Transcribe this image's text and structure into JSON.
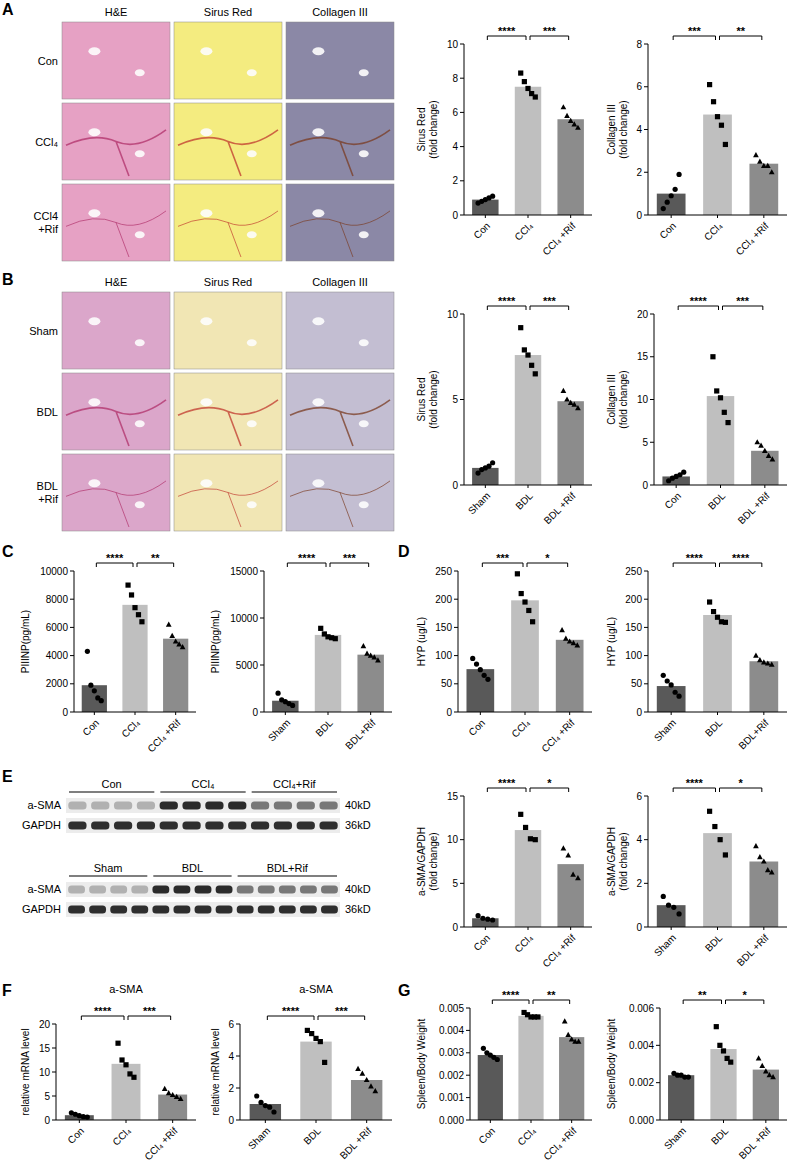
{
  "chart_data": [
    {
      "type": "bar",
      "ylabel": [
        "Sirus Red",
        "(fold change)"
      ],
      "categories": [
        "Con",
        "CCl₄",
        "CCl₄ +Rif"
      ],
      "values": [
        0.9,
        7.5,
        5.6
      ],
      "colors": [
        "#595959",
        "#bfbfbf",
        "#8c8c8c"
      ],
      "scatter": [
        {
          "marker": "circle",
          "values": [
            0.7,
            0.8,
            0.9,
            1.0,
            1.1
          ]
        },
        {
          "marker": "square",
          "values": [
            8.3,
            7.8,
            7.4,
            7.1,
            6.9
          ]
        },
        {
          "marker": "triangle",
          "values": [
            6.3,
            5.8,
            5.5,
            5.3,
            5.1
          ]
        }
      ],
      "ylim": [
        0,
        10
      ],
      "yticks": [
        0,
        2,
        4,
        6,
        8,
        10
      ],
      "annotations": [
        {
          "text": "****",
          "between": [
            "Con",
            "CCl₄"
          ]
        },
        {
          "text": "***",
          "between": [
            "CCl₄",
            "CCl₄ +Rif"
          ]
        }
      ]
    },
    {
      "type": "bar",
      "ylabel": [
        "Collagen III",
        "(fold change)"
      ],
      "categories": [
        "Con",
        "CCl₄",
        "CCl₄ +Rif"
      ],
      "values": [
        1.0,
        4.7,
        2.4
      ],
      "colors": [
        "#595959",
        "#bfbfbf",
        "#8c8c8c"
      ],
      "scatter": [
        {
          "marker": "circle",
          "values": [
            0.3,
            0.6,
            0.9,
            1.2,
            1.9
          ]
        },
        {
          "marker": "square",
          "values": [
            6.1,
            5.3,
            4.6,
            4.2,
            3.3
          ]
        },
        {
          "marker": "triangle",
          "values": [
            2.8,
            2.5,
            2.3,
            2.3,
            2.0
          ]
        }
      ],
      "ylim": [
        0,
        8
      ],
      "yticks": [
        0,
        2,
        4,
        6,
        8
      ],
      "annotations": [
        {
          "text": "***",
          "between": [
            "Con",
            "CCl₄"
          ]
        },
        {
          "text": "**",
          "between": [
            "CCl₄",
            "CCl₄ +Rif"
          ]
        }
      ]
    },
    {
      "type": "bar",
      "ylabel": [
        "Sirus Red",
        "(fold change)"
      ],
      "categories": [
        "Sham",
        "BDL",
        "BDL +Rif"
      ],
      "values": [
        1.0,
        7.6,
        4.9
      ],
      "colors": [
        "#595959",
        "#bfbfbf",
        "#8c8c8c"
      ],
      "scatter": [
        {
          "marker": "circle",
          "values": [
            0.7,
            0.9,
            1.0,
            1.1,
            1.3
          ]
        },
        {
          "marker": "square",
          "values": [
            9.2,
            7.9,
            7.6,
            7.0,
            6.5
          ]
        },
        {
          "marker": "triangle",
          "values": [
            5.5,
            5.0,
            4.8,
            4.7,
            4.5
          ]
        }
      ],
      "ylim": [
        0,
        10
      ],
      "yticks": [
        0,
        5,
        10
      ],
      "annotations": [
        {
          "text": "****",
          "between": [
            "Sham",
            "BDL"
          ]
        },
        {
          "text": "***",
          "between": [
            "BDL",
            "BDL +Rif"
          ]
        }
      ]
    },
    {
      "type": "bar",
      "ylabel": [
        "Collagen III",
        "(fold change)"
      ],
      "categories": [
        "Con",
        "BDL",
        "BDL +Rif"
      ],
      "values": [
        1.0,
        10.4,
        4.0
      ],
      "colors": [
        "#595959",
        "#bfbfbf",
        "#8c8c8c"
      ],
      "scatter": [
        {
          "marker": "circle",
          "values": [
            0.5,
            0.8,
            1.0,
            1.2,
            1.5
          ]
        },
        {
          "marker": "square",
          "values": [
            15.0,
            11.0,
            10.2,
            8.5,
            7.3
          ]
        },
        {
          "marker": "triangle",
          "values": [
            5.0,
            4.6,
            4.0,
            3.4,
            3.0
          ]
        }
      ],
      "ylim": [
        0,
        20
      ],
      "yticks": [
        0,
        5,
        10,
        15,
        20
      ],
      "annotations": [
        {
          "text": "****",
          "between": [
            "Con",
            "BDL"
          ]
        },
        {
          "text": "***",
          "between": [
            "BDL",
            "BDL +Rif"
          ]
        }
      ]
    },
    {
      "type": "bar",
      "ylabel": "PIIINP(pg/mL)",
      "categories": [
        "Con",
        "CCl₄",
        "CCl₄ +Rif"
      ],
      "values": [
        1900,
        7600,
        5200
      ],
      "colors": [
        "#595959",
        "#bfbfbf",
        "#8c8c8c"
      ],
      "scatter": [
        {
          "marker": "circle",
          "values": [
            4300,
            1900,
            1500,
            1000,
            800
          ]
        },
        {
          "marker": "square",
          "values": [
            9000,
            8300,
            7400,
            6900,
            6400
          ]
        },
        {
          "marker": "triangle",
          "values": [
            6200,
            5400,
            5000,
            4800,
            4600
          ]
        }
      ],
      "ylim": [
        0,
        10000
      ],
      "yticks": [
        0,
        2000,
        4000,
        6000,
        8000,
        10000
      ],
      "annotations": [
        {
          "text": "****",
          "between": [
            "Con",
            "CCl₄"
          ]
        },
        {
          "text": "**",
          "between": [
            "CCl₄",
            "CCl₄ +Rif"
          ]
        }
      ]
    },
    {
      "type": "bar",
      "ylabel": "PIIINP(pg/mL)",
      "categories": [
        "Sham",
        "BDL",
        "BDL+Rif"
      ],
      "values": [
        1200,
        8200,
        6100
      ],
      "colors": [
        "#595959",
        "#bfbfbf",
        "#8c8c8c"
      ],
      "scatter": [
        {
          "marker": "circle",
          "values": [
            2000,
            1300,
            1100,
            900,
            700
          ]
        },
        {
          "marker": "square",
          "values": [
            8900,
            8300,
            8000,
            7900,
            7800
          ]
        },
        {
          "marker": "triangle",
          "values": [
            7000,
            6200,
            6000,
            5800,
            5500
          ]
        }
      ],
      "ylim": [
        0,
        15000
      ],
      "yticks": [
        0,
        5000,
        10000,
        15000
      ],
      "annotations": [
        {
          "text": "****",
          "between": [
            "Sham",
            "BDL"
          ]
        },
        {
          "text": "***",
          "between": [
            "BDL",
            "BDL+Rif"
          ]
        }
      ]
    },
    {
      "type": "bar",
      "ylabel": "HYP (ug/L)",
      "categories": [
        "Con",
        "CCl₄",
        "CCl₄ +Rif"
      ],
      "values": [
        76,
        198,
        128
      ],
      "colors": [
        "#595959",
        "#bfbfbf",
        "#8c8c8c"
      ],
      "scatter": [
        {
          "marker": "circle",
          "values": [
            95,
            85,
            75,
            65,
            58
          ]
        },
        {
          "marker": "square",
          "values": [
            245,
            210,
            195,
            180,
            160
          ]
        },
        {
          "marker": "triangle",
          "values": [
            145,
            130,
            125,
            122,
            118
          ]
        }
      ],
      "ylim": [
        0,
        250
      ],
      "yticks": [
        0,
        50,
        100,
        150,
        200,
        250
      ],
      "annotations": [
        {
          "text": "***",
          "between": [
            "Con",
            "CCl₄"
          ]
        },
        {
          "text": "*",
          "between": [
            "CCl₄",
            "CCl₄ +Rif"
          ]
        }
      ]
    },
    {
      "type": "bar",
      "ylabel": "HYP (ug/L)",
      "categories": [
        "Sham",
        "BDL",
        "BDL+Rif"
      ],
      "values": [
        46,
        172,
        90
      ],
      "colors": [
        "#595959",
        "#bfbfbf",
        "#8c8c8c"
      ],
      "scatter": [
        {
          "marker": "circle",
          "values": [
            65,
            55,
            48,
            35,
            28
          ]
        },
        {
          "marker": "square",
          "values": [
            195,
            178,
            168,
            160,
            159
          ]
        },
        {
          "marker": "triangle",
          "values": [
            100,
            92,
            88,
            86,
            84
          ]
        }
      ],
      "ylim": [
        0,
        250
      ],
      "yticks": [
        0,
        50,
        100,
        150,
        200,
        250
      ],
      "annotations": [
        {
          "text": "****",
          "between": [
            "Sham",
            "BDL"
          ]
        },
        {
          "text": "****",
          "between": [
            "BDL",
            "BDL+Rif"
          ]
        }
      ]
    },
    {
      "type": "bar",
      "ylabel": [
        "a-SMA/GAPDH",
        "(fold change)"
      ],
      "categories": [
        "Con",
        "CCl₄",
        "CCl₄ +Rif"
      ],
      "values": [
        1.0,
        11.1,
        7.2
      ],
      "colors": [
        "#595959",
        "#bfbfbf",
        "#8c8c8c"
      ],
      "scatter": [
        {
          "marker": "circle",
          "values": [
            1.3,
            1.0,
            0.9,
            0.8
          ]
        },
        {
          "marker": "square",
          "values": [
            12.9,
            11.4,
            10.1,
            10.0
          ]
        },
        {
          "marker": "triangle",
          "values": [
            9.0,
            8.2,
            6.0,
            5.6
          ]
        }
      ],
      "ylim": [
        0,
        15
      ],
      "yticks": [
        0,
        5,
        10,
        15
      ],
      "annotations": [
        {
          "text": "****",
          "between": [
            "Con",
            "CCl₄"
          ]
        },
        {
          "text": "*",
          "between": [
            "CCl₄",
            "CCl₄ +Rif"
          ]
        }
      ]
    },
    {
      "type": "bar",
      "ylabel": [
        "a-SMA/GAPDH",
        "(fold change)"
      ],
      "categories": [
        "Sham",
        "BDL",
        "BDL +Rif"
      ],
      "values": [
        1.0,
        4.3,
        3.0
      ],
      "colors": [
        "#595959",
        "#bfbfbf",
        "#8c8c8c"
      ],
      "scatter": [
        {
          "marker": "circle",
          "values": [
            1.4,
            1.0,
            0.9,
            0.6
          ]
        },
        {
          "marker": "square",
          "values": [
            5.3,
            4.6,
            4.0,
            3.3
          ]
        },
        {
          "marker": "triangle",
          "values": [
            3.7,
            3.2,
            3.0,
            2.6,
            2.5
          ]
        }
      ],
      "ylim": [
        0,
        6
      ],
      "yticks": [
        0,
        2,
        4,
        6
      ],
      "annotations": [
        {
          "text": "****",
          "between": [
            "Sham",
            "BDL"
          ]
        },
        {
          "text": "*",
          "between": [
            "BDL",
            "BDL +Rif"
          ]
        }
      ]
    },
    {
      "type": "bar",
      "title": "a-SMA",
      "ylabel": "relative mRNA level",
      "categories": [
        "Con",
        "CCl₄",
        "CCl₄ +Rif"
      ],
      "values": [
        1.0,
        11.7,
        5.3
      ],
      "colors": [
        "#595959",
        "#bfbfbf",
        "#8c8c8c"
      ],
      "scatter": [
        {
          "marker": "circle",
          "values": [
            1.5,
            1.2,
            0.9,
            0.7,
            0.6
          ]
        },
        {
          "marker": "square",
          "values": [
            16.0,
            12.5,
            11.5,
            9.6,
            8.9
          ]
        },
        {
          "marker": "triangle",
          "values": [
            6.5,
            5.6,
            5.2,
            4.8,
            4.4
          ]
        }
      ],
      "ylim": [
        0,
        20
      ],
      "yticks": [
        0,
        5,
        10,
        15,
        20
      ],
      "annotations": [
        {
          "text": "****",
          "between": [
            "Con",
            "CCl₄"
          ]
        },
        {
          "text": "***",
          "between": [
            "CCl₄",
            "CCl₄ +Rif"
          ]
        }
      ]
    },
    {
      "type": "bar",
      "title": "a-SMA",
      "ylabel": "relative mRNA level",
      "categories": [
        "Sham",
        "BDL",
        "BDL +Rif"
      ],
      "values": [
        1.0,
        4.9,
        2.5
      ],
      "colors": [
        "#595959",
        "#bfbfbf",
        "#8c8c8c"
      ],
      "scatter": [
        {
          "marker": "circle",
          "values": [
            1.5,
            1.1,
            0.9,
            0.8,
            0.5
          ]
        },
        {
          "marker": "square",
          "values": [
            5.6,
            5.4,
            5.1,
            4.9,
            3.6
          ]
        },
        {
          "marker": "triangle",
          "values": [
            3.2,
            2.9,
            2.5,
            2.1,
            1.8
          ]
        }
      ],
      "ylim": [
        0,
        6
      ],
      "yticks": [
        0,
        2,
        4,
        6
      ],
      "annotations": [
        {
          "text": "****",
          "between": [
            "Sham",
            "BDL"
          ]
        },
        {
          "text": "***",
          "between": [
            "BDL",
            "BDL +Rif"
          ]
        }
      ]
    },
    {
      "type": "bar",
      "ylabel": "Spleen/Body Weight",
      "categories": [
        "Con",
        "CCl₄",
        "CCl₄ +Rif"
      ],
      "values": [
        0.0029,
        0.00465,
        0.0037
      ],
      "colors": [
        "#595959",
        "#bfbfbf",
        "#8c8c8c"
      ],
      "scatter": [
        {
          "marker": "circle",
          "values": [
            0.0032,
            0.003,
            0.0029,
            0.0028,
            0.0027
          ]
        },
        {
          "marker": "square",
          "values": [
            0.0048,
            0.0047,
            0.0046,
            0.0046,
            0.0046
          ]
        },
        {
          "marker": "triangle",
          "values": [
            0.0044,
            0.0038,
            0.0036,
            0.0035,
            0.0035
          ]
        }
      ],
      "ylim": [
        0,
        0.005
      ],
      "yticks": [
        {
          "value": 0,
          "label": "0.000"
        },
        {
          "value": 0.001,
          "label": "0.001"
        },
        {
          "value": 0.002,
          "label": "0.002"
        },
        {
          "value": 0.003,
          "label": "0.003"
        },
        {
          "value": 0.004,
          "label": "0.004"
        },
        {
          "value": 0.005,
          "label": "0.005"
        }
      ],
      "annotations": [
        {
          "text": "****",
          "between": [
            "Con",
            "CCl₄"
          ]
        },
        {
          "text": "**",
          "between": [
            "CCl₄",
            "CCl₄ +Rif"
          ]
        }
      ]
    },
    {
      "type": "bar",
      "ylabel": "Spleen/Body Weight",
      "categories": [
        "Sham",
        "BDL",
        "BDL +Rif"
      ],
      "values": [
        0.0024,
        0.0038,
        0.0027
      ],
      "colors": [
        "#595959",
        "#bfbfbf",
        "#8c8c8c"
      ],
      "scatter": [
        {
          "marker": "circle",
          "values": [
            0.0025,
            0.0024,
            0.0024,
            0.0023,
            0.0023
          ]
        },
        {
          "marker": "square",
          "values": [
            0.005,
            0.004,
            0.0037,
            0.0033,
            0.0031
          ]
        },
        {
          "marker": "triangle",
          "values": [
            0.0033,
            0.0029,
            0.0026,
            0.0024,
            0.0023
          ]
        }
      ],
      "ylim": [
        0,
        0.006
      ],
      "yticks": [
        {
          "value": 0,
          "label": "0.000"
        },
        {
          "value": 0.002,
          "label": "0.002"
        },
        {
          "value": 0.004,
          "label": "0.004"
        },
        {
          "value": 0.006,
          "label": "0.006"
        }
      ],
      "annotations": [
        {
          "text": "**",
          "between": [
            "Sham",
            "BDL"
          ]
        },
        {
          "text": "*",
          "between": [
            "BDL",
            "BDL +Rif"
          ]
        }
      ]
    }
  ],
  "figure": {
    "panel_letters": [
      "A",
      "B",
      "C",
      "D",
      "E",
      "F",
      "G"
    ],
    "micrographs": [
      {
        "columns": [
          "H&E",
          "Sirus Red",
          "Collagen III"
        ],
        "rows": [
          "Con",
          "CCl₄",
          "CCl4 +Rif"
        ]
      },
      {
        "columns": [
          "H&E",
          "Sirus Red",
          "Collagen III"
        ],
        "rows": [
          "Sham",
          "BDL",
          "BDL +Rif"
        ]
      }
    ],
    "blots": [
      {
        "groups": [
          "Con",
          "CCl₄",
          "CCl₄+Rif"
        ],
        "proteins": [
          "a-SMA",
          "GAPDH"
        ],
        "sizes": [
          "40kD",
          "36kD"
        ]
      },
      {
        "groups": [
          "Sham",
          "BDL",
          "BDL+Rif"
        ],
        "proteins": [
          "a-SMA",
          "GAPDH"
        ],
        "sizes": [
          "40kD",
          "36kD"
        ]
      }
    ]
  }
}
